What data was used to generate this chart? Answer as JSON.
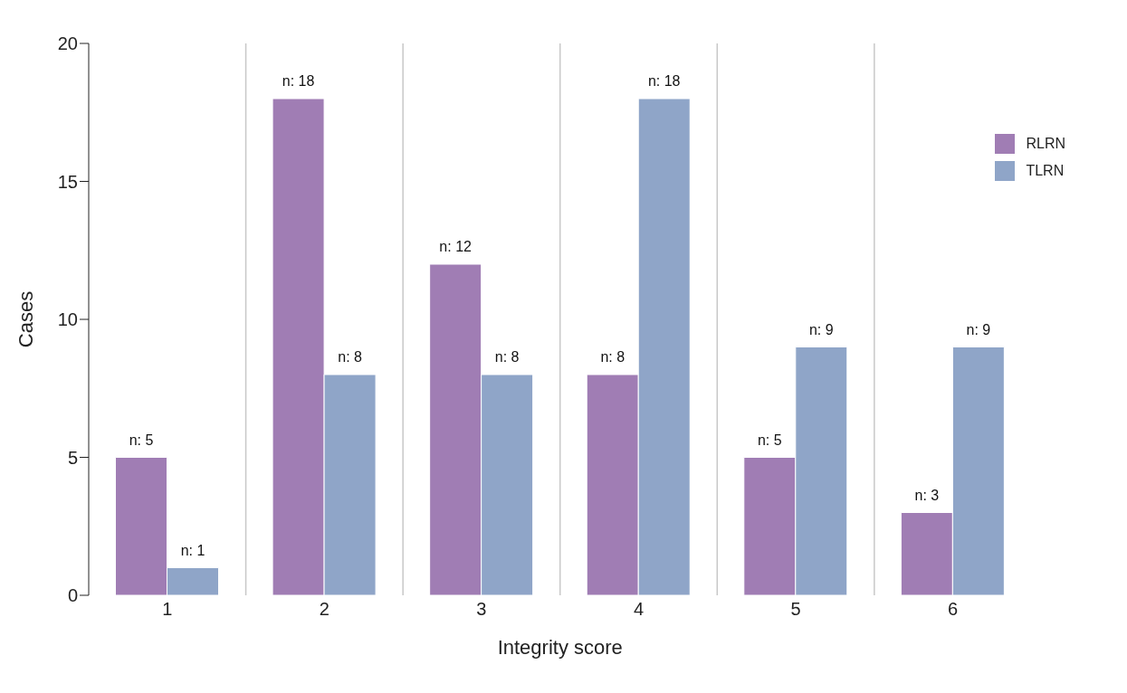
{
  "chart_data": {
    "type": "bar",
    "xlabel": "Integrity score",
    "ylabel": "Cases",
    "categories": [
      "1",
      "2",
      "3",
      "4",
      "5",
      "6"
    ],
    "series": [
      {
        "name": "RLRN",
        "color": "#a07db4",
        "values": [
          5,
          18,
          12,
          8,
          5,
          3
        ],
        "value_labels": [
          "n: 5",
          "n: 18",
          "n: 12",
          "n: 8",
          "n: 5",
          "n: 3"
        ]
      },
      {
        "name": "TLRN",
        "color": "#8fa5c8",
        "values": [
          1,
          8,
          8,
          18,
          9,
          9
        ],
        "value_labels": [
          "n: 1",
          "n: 8",
          "n: 8",
          "n: 18",
          "n: 9",
          "n: 9"
        ]
      }
    ],
    "ylim": [
      0,
      20
    ],
    "yticks": [
      0,
      5,
      10,
      15,
      20
    ],
    "grid": "x",
    "legend": "top right"
  }
}
